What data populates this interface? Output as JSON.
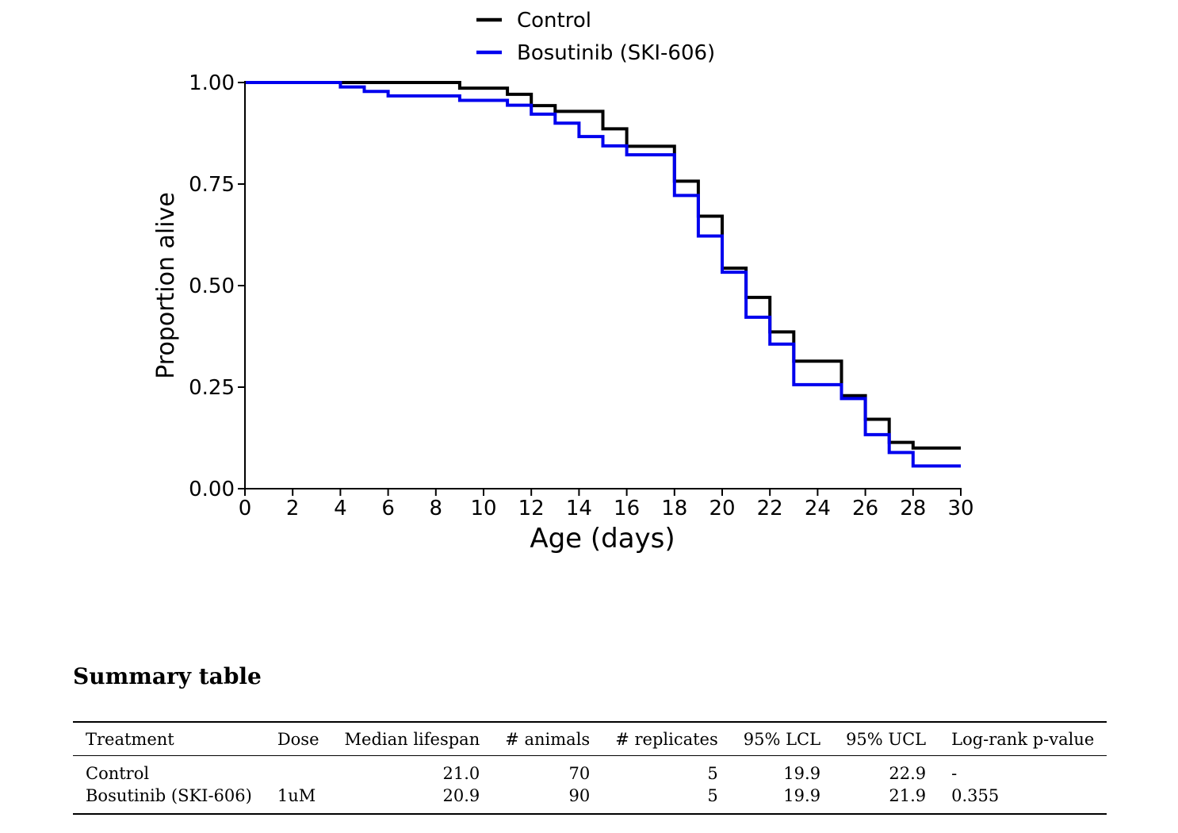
{
  "chart_data": {
    "type": "line",
    "step": true,
    "xlabel": "Age (days)",
    "ylabel": "Proportion alive",
    "xlim": [
      0,
      30
    ],
    "ylim": [
      0,
      1
    ],
    "xticks": [
      "0",
      "2",
      "4",
      "6",
      "8",
      "10",
      "12",
      "14",
      "16",
      "18",
      "20",
      "22",
      "24",
      "26",
      "28",
      "30"
    ],
    "yticks": [
      "0.00",
      "0.25",
      "0.50",
      "0.75",
      "1.00"
    ],
    "grid": false,
    "legend_position": "top-center",
    "series": [
      {
        "name": "Control",
        "color": "#000000",
        "x": [
          0,
          9,
          11,
          12,
          13,
          15,
          16,
          18,
          19,
          20,
          21,
          22,
          23,
          25,
          26,
          27,
          28,
          30
        ],
        "y": [
          1.0,
          0.986,
          0.971,
          0.943,
          0.929,
          0.886,
          0.843,
          0.757,
          0.671,
          0.543,
          0.471,
          0.386,
          0.314,
          0.229,
          0.171,
          0.114,
          0.1,
          0.1
        ]
      },
      {
        "name": "Bosutinib (SKI-606)",
        "color": "#0000ee",
        "x": [
          0,
          4,
          5,
          6,
          9,
          11,
          12,
          13,
          14,
          15,
          16,
          18,
          19,
          20,
          21,
          22,
          23,
          25,
          26,
          27,
          28,
          30
        ],
        "y": [
          1.0,
          0.989,
          0.978,
          0.967,
          0.956,
          0.944,
          0.922,
          0.9,
          0.867,
          0.844,
          0.822,
          0.722,
          0.622,
          0.533,
          0.422,
          0.356,
          0.256,
          0.222,
          0.133,
          0.089,
          0.056,
          0.056
        ]
      }
    ]
  },
  "summary": {
    "title": "Summary table",
    "headers": [
      "Treatment",
      "Dose",
      "Median lifespan",
      "# animals",
      "# replicates",
      "95% LCL",
      "95% UCL",
      "Log-rank p-value"
    ],
    "rows": [
      [
        "Control",
        "",
        "21.0",
        "70",
        "5",
        "19.9",
        "22.9",
        "-"
      ],
      [
        "Bosutinib (SKI-606)",
        "1uM",
        "20.9",
        "90",
        "5",
        "19.9",
        "21.9",
        "0.355"
      ]
    ]
  }
}
